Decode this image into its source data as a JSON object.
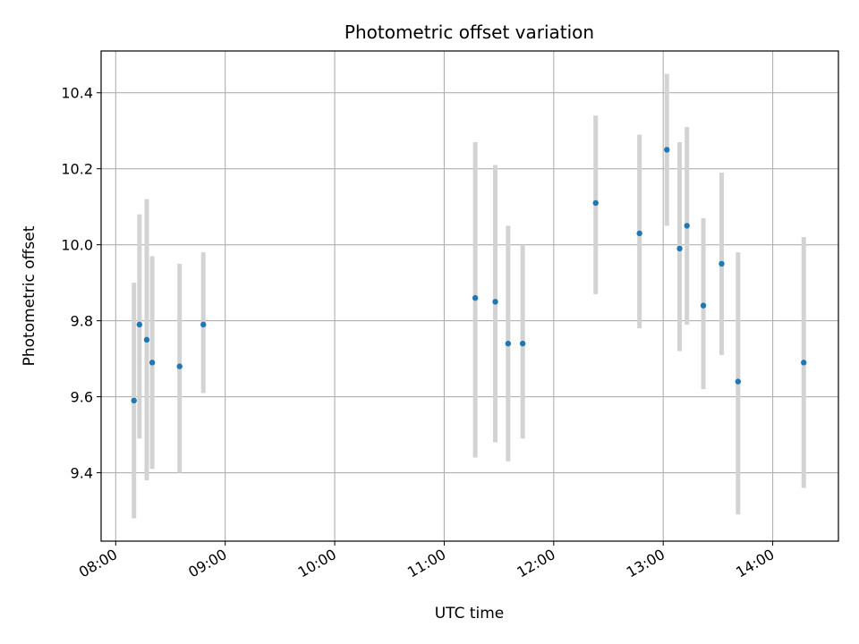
{
  "chart_data": {
    "type": "scatter",
    "title": "Photometric offset variation",
    "xlabel": "UTC time",
    "ylabel": "Photometric offset",
    "x_is_time": true,
    "x_ticks": [
      "08:00",
      "09:00",
      "10:00",
      "11:00",
      "12:00",
      "13:00",
      "14:00"
    ],
    "y_ticks": [
      "9.4",
      "9.6",
      "9.8",
      "10.0",
      "10.2",
      "10.4"
    ],
    "xlim": [
      "07:52",
      "14:36"
    ],
    "ylim": [
      9.22,
      10.51
    ],
    "grid": true,
    "point_color": "#1f77b4",
    "errorbar_color": "#d3d3d3",
    "points": [
      {
        "x": "08:10",
        "y": 9.59,
        "ylow": 9.28,
        "yhigh": 9.9
      },
      {
        "x": "08:13",
        "y": 9.79,
        "ylow": 9.49,
        "yhigh": 10.08
      },
      {
        "x": "08:17",
        "y": 9.75,
        "ylow": 9.38,
        "yhigh": 10.12
      },
      {
        "x": "08:20",
        "y": 9.69,
        "ylow": 9.41,
        "yhigh": 9.97
      },
      {
        "x": "08:35",
        "y": 9.68,
        "ylow": 9.4,
        "yhigh": 9.95
      },
      {
        "x": "08:48",
        "y": 9.79,
        "ylow": 9.61,
        "yhigh": 9.98
      },
      {
        "x": "11:17",
        "y": 9.86,
        "ylow": 9.44,
        "yhigh": 10.27
      },
      {
        "x": "11:28",
        "y": 9.85,
        "ylow": 9.48,
        "yhigh": 10.21
      },
      {
        "x": "11:35",
        "y": 9.74,
        "ylow": 9.43,
        "yhigh": 10.05
      },
      {
        "x": "11:43",
        "y": 9.74,
        "ylow": 9.49,
        "yhigh": 10.0
      },
      {
        "x": "12:23",
        "y": 10.11,
        "ylow": 9.87,
        "yhigh": 10.34
      },
      {
        "x": "12:47",
        "y": 10.03,
        "ylow": 9.78,
        "yhigh": 10.29
      },
      {
        "x": "13:02",
        "y": 10.25,
        "ylow": 10.05,
        "yhigh": 10.45
      },
      {
        "x": "13:09",
        "y": 9.99,
        "ylow": 9.72,
        "yhigh": 10.27
      },
      {
        "x": "13:13",
        "y": 10.05,
        "ylow": 9.79,
        "yhigh": 10.31
      },
      {
        "x": "13:22",
        "y": 9.84,
        "ylow": 9.62,
        "yhigh": 10.07
      },
      {
        "x": "13:32",
        "y": 9.95,
        "ylow": 9.71,
        "yhigh": 10.19
      },
      {
        "x": "13:41",
        "y": 9.64,
        "ylow": 9.29,
        "yhigh": 9.98
      },
      {
        "x": "14:17",
        "y": 9.69,
        "ylow": 9.36,
        "yhigh": 10.02
      }
    ]
  }
}
